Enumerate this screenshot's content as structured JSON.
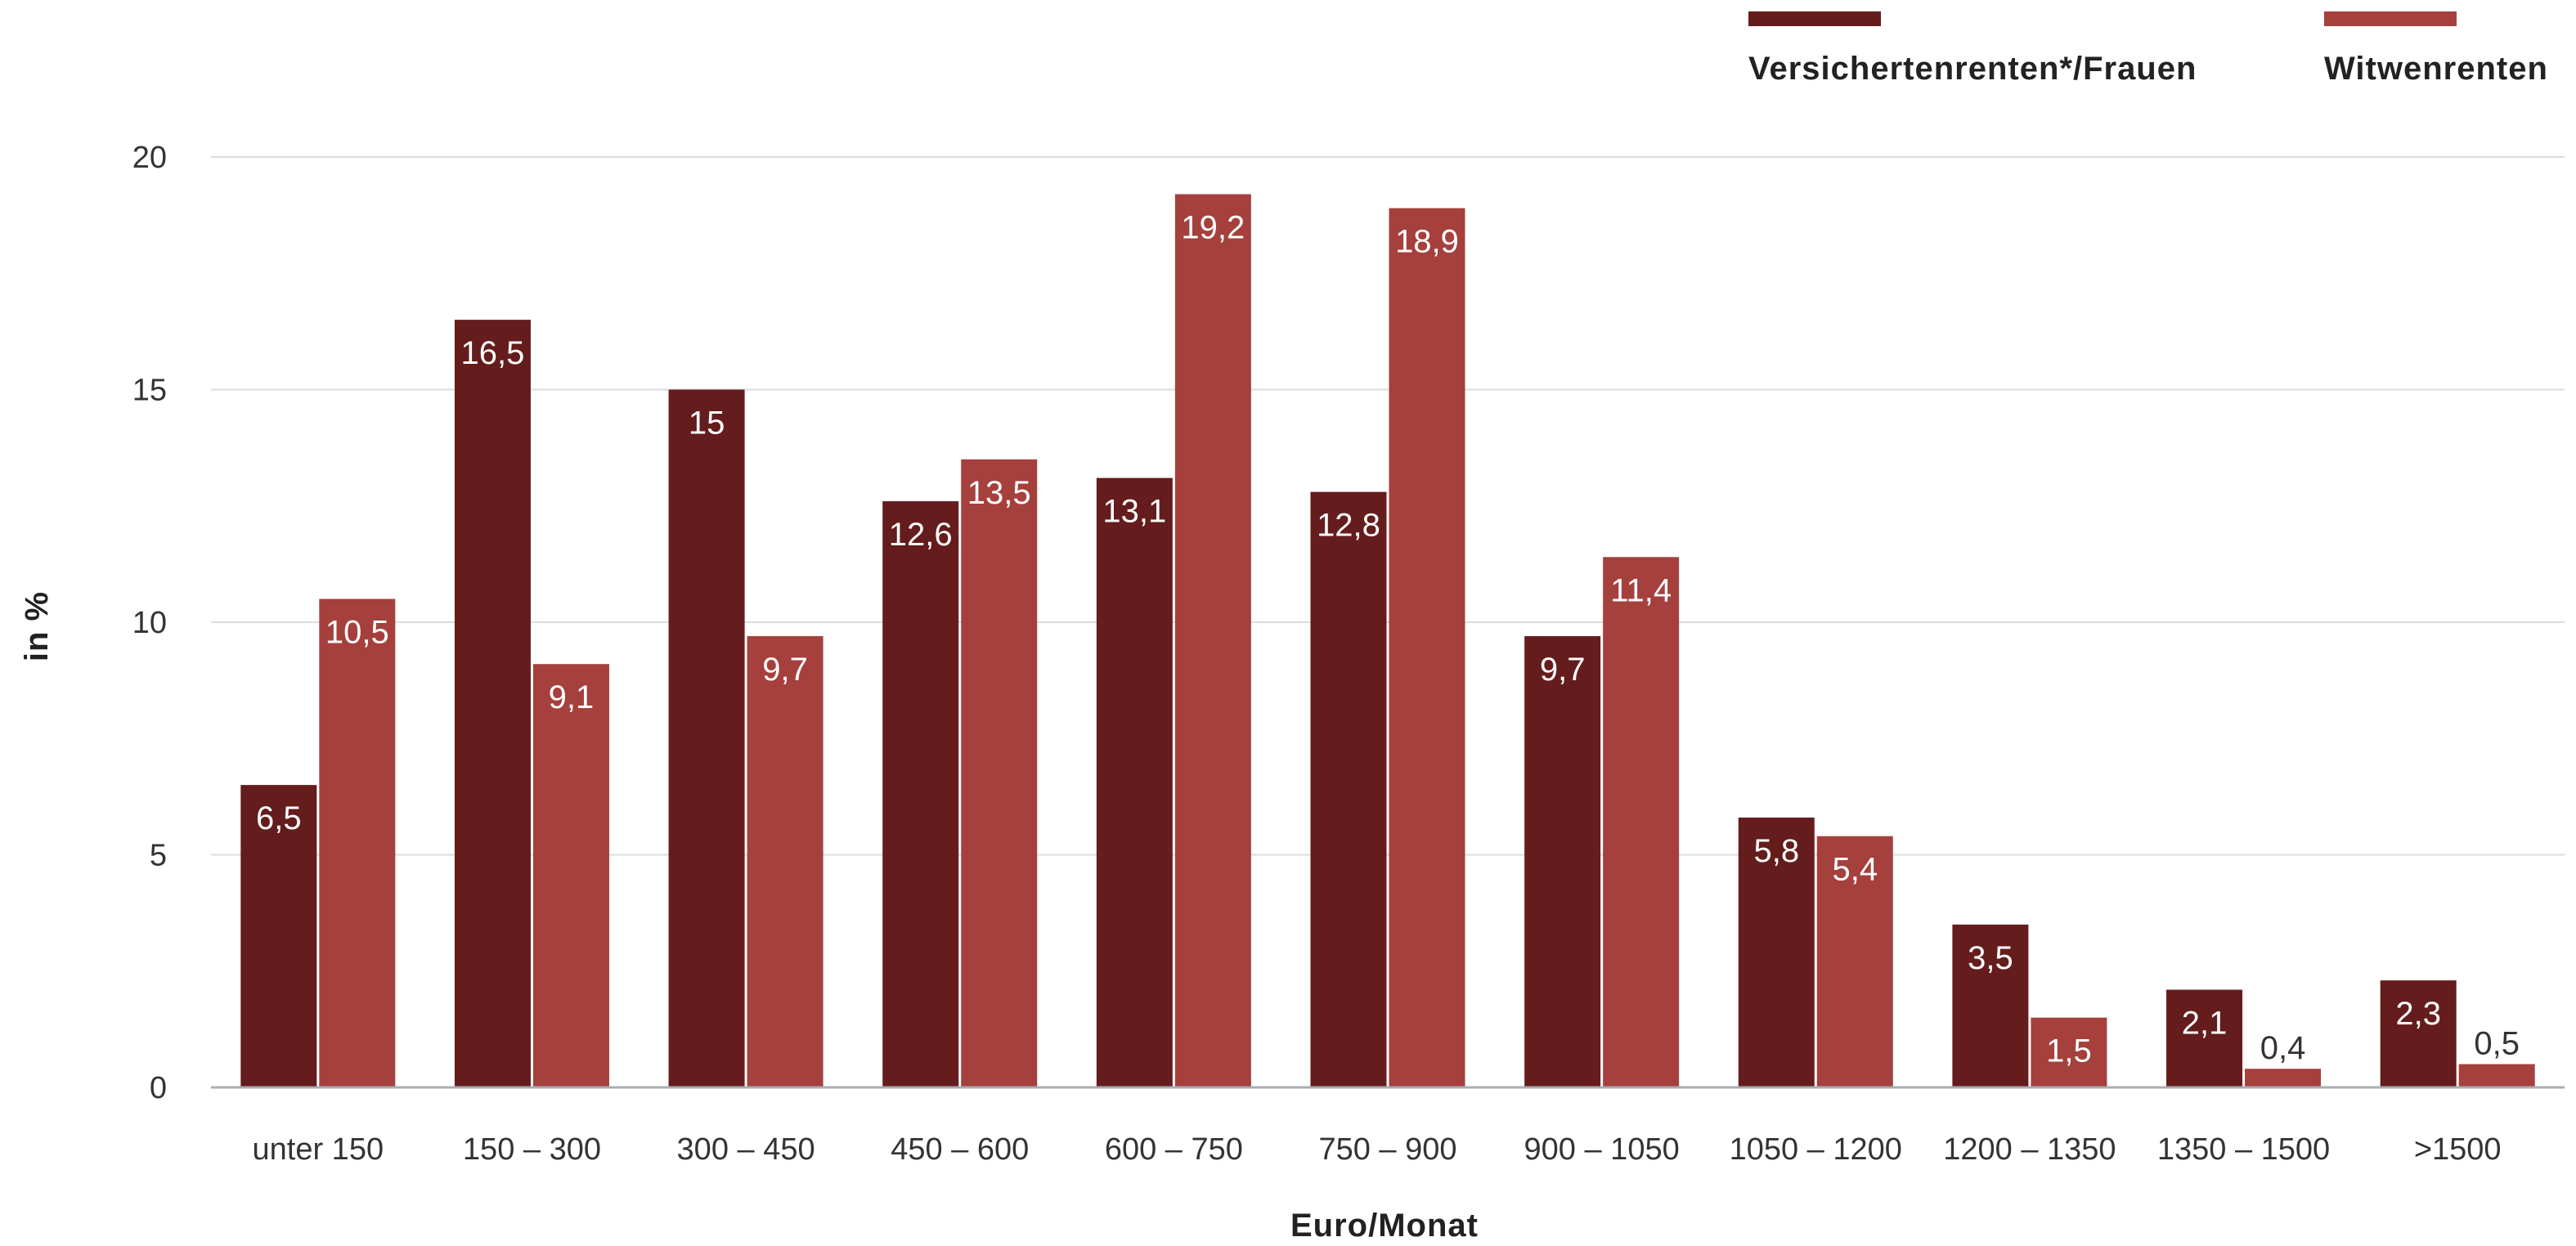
{
  "chart_data": {
    "type": "bar",
    "xlabel": "Euro/Monat",
    "ylabel": "in %",
    "ylim": [
      0,
      20
    ],
    "yticks": [
      "0",
      "5",
      "10",
      "15",
      "20"
    ],
    "grid": true,
    "legend_position": "top-right",
    "categories": [
      "unter 150",
      "150 – 300",
      "300 – 450",
      "450 – 600",
      "600 – 750",
      "750 – 900",
      "900 – 1050",
      "1050 – 1200",
      "1200 – 1350",
      "1350 – 1500",
      ">1500"
    ],
    "series": [
      {
        "name": "Versichertenrenten*/Frauen",
        "color": "#641c1c",
        "values": [
          6.5,
          16.5,
          15,
          12.6,
          13.1,
          12.8,
          9.7,
          5.8,
          3.5,
          2.1,
          2.3
        ],
        "labels": [
          "6,5",
          "16,5",
          "15",
          "12,6",
          "13,1",
          "12,8",
          "9,7",
          "5,8",
          "3,5",
          "2,1",
          "2,3"
        ]
      },
      {
        "name": "Witwenrenten",
        "color": "#a5403d",
        "values": [
          10.5,
          9.1,
          9.7,
          13.5,
          19.2,
          18.9,
          11.4,
          5.4,
          1.5,
          0.4,
          0.5
        ],
        "labels": [
          "10,5",
          "9,1",
          "9,7",
          "13,5",
          "19,2",
          "18,9",
          "11,4",
          "5,4",
          "1,5",
          "0,4",
          "0,5"
        ]
      }
    ]
  }
}
